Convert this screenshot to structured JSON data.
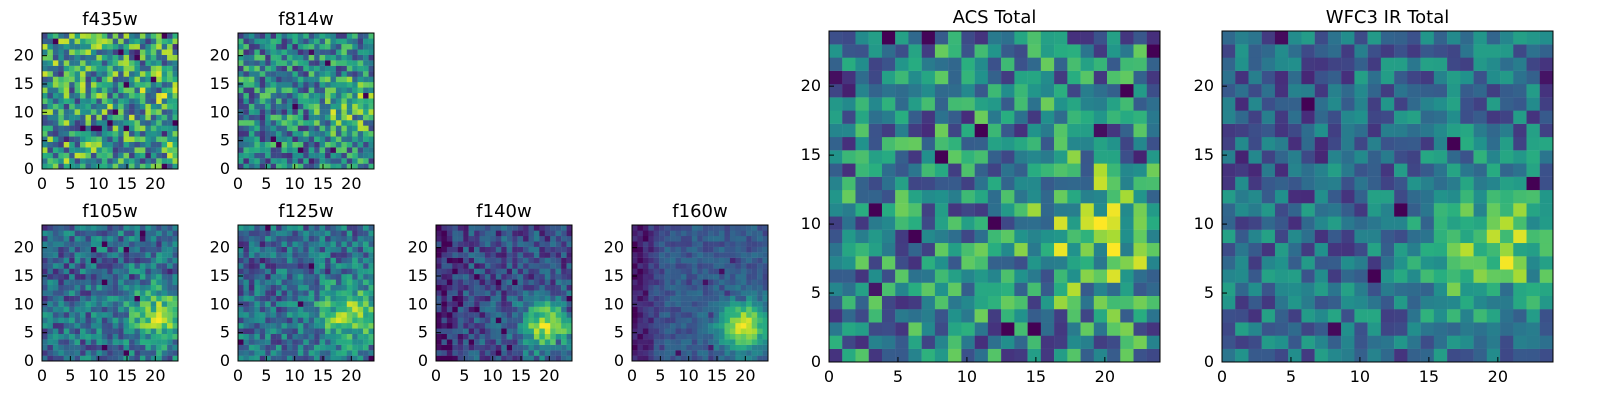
{
  "figure": {
    "colormap": "viridis",
    "palette": [
      "#440154",
      "#472d7b",
      "#3b528b",
      "#2c728e",
      "#21918c",
      "#28ae80",
      "#5ec962",
      "#addc30",
      "#fde725"
    ]
  },
  "chart_data": [
    {
      "type": "heatmap",
      "title": "f435w",
      "grid_size": 25,
      "xlim": [
        0,
        24
      ],
      "ylim": [
        0,
        24
      ],
      "xticks": [
        0,
        5,
        10,
        15,
        20
      ],
      "yticks": [
        0,
        5,
        10,
        15,
        20
      ],
      "hotspot": [
        22,
        12
      ],
      "pattern": "noisy-uniform",
      "seed": 11
    },
    {
      "type": "heatmap",
      "title": "f814w",
      "grid_size": 25,
      "xlim": [
        0,
        24
      ],
      "ylim": [
        0,
        24
      ],
      "xticks": [
        0,
        5,
        10,
        15,
        20
      ],
      "yticks": [
        0,
        5,
        10,
        15,
        20
      ],
      "hotspot": [
        20,
        11
      ],
      "pattern": "noisy-hotspot",
      "seed": 23
    },
    {
      "type": "heatmap",
      "title": "f105w",
      "grid_size": 25,
      "xlim": [
        0,
        24
      ],
      "ylim": [
        0,
        24
      ],
      "xticks": [
        0,
        5,
        10,
        15,
        20
      ],
      "yticks": [
        0,
        5,
        10,
        15,
        20
      ],
      "hotspot": [
        21,
        8
      ],
      "pattern": "hotspot",
      "seed": 37
    },
    {
      "type": "heatmap",
      "title": "f125w",
      "grid_size": 25,
      "xlim": [
        0,
        24
      ],
      "ylim": [
        0,
        24
      ],
      "xticks": [
        0,
        5,
        10,
        15,
        20
      ],
      "yticks": [
        0,
        5,
        10,
        15,
        20
      ],
      "hotspot": [
        20,
        8
      ],
      "pattern": "hotspot",
      "seed": 41
    },
    {
      "type": "heatmap",
      "title": "f140w",
      "grid_size": 25,
      "xlim": [
        0,
        24
      ],
      "ylim": [
        0,
        24
      ],
      "xticks": [
        0,
        5,
        10,
        15,
        20
      ],
      "yticks": [
        0,
        5,
        10,
        15,
        20
      ],
      "hotspot": [
        20,
        6
      ],
      "pattern": "dark-hotspot",
      "seed": 53
    },
    {
      "type": "heatmap",
      "title": "f160w",
      "grid_size": 25,
      "xlim": [
        0,
        24
      ],
      "ylim": [
        0,
        24
      ],
      "xticks": [
        0,
        5,
        10,
        15,
        20
      ],
      "yticks": [
        0,
        5,
        10,
        15,
        20
      ],
      "hotspot": [
        20,
        6
      ],
      "pattern": "smooth-hotspot",
      "seed": 67
    },
    {
      "type": "heatmap",
      "title": "ACS Total",
      "grid_size": 25,
      "xlim": [
        0,
        24
      ],
      "ylim": [
        0,
        24
      ],
      "xticks": [
        0,
        5,
        10,
        15,
        20
      ],
      "yticks": [
        0,
        5,
        10,
        15,
        20
      ],
      "hotspot": [
        20,
        9
      ],
      "pattern": "noisy-hotspot",
      "seed": 79
    },
    {
      "type": "heatmap",
      "title": "WFC3 IR Total",
      "grid_size": 25,
      "xlim": [
        0,
        24
      ],
      "ylim": [
        0,
        24
      ],
      "xticks": [
        0,
        5,
        10,
        15,
        20
      ],
      "yticks": [
        0,
        5,
        10,
        15,
        20
      ],
      "hotspot": [
        20,
        8
      ],
      "pattern": "hotspot",
      "seed": 97
    }
  ]
}
